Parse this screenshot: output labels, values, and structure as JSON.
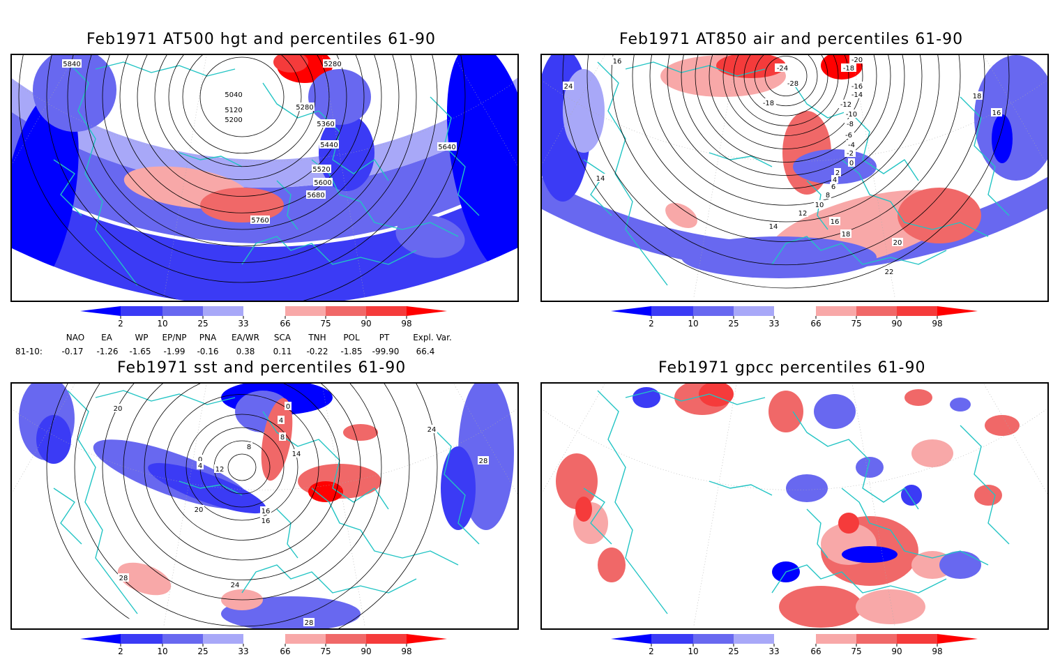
{
  "panels": [
    {
      "id": "tl",
      "title": "Feb1971 AT500 hgt and percentiles 61-90",
      "contour_labels": [
        "5840",
        "5280",
        "5040",
        "5120",
        "5200",
        "5280",
        "5360",
        "5440",
        "5520",
        "5600",
        "5680",
        "5760",
        "5640"
      ]
    },
    {
      "id": "tr",
      "title": "Feb1971 AT850 air and percentiles 61-90",
      "contour_labels": [
        "16",
        "-24",
        "-20",
        "-18",
        "-16",
        "-14",
        "-12",
        "-10",
        "-8",
        "-6",
        "-4",
        "-2",
        "0",
        "2",
        "4",
        "6",
        "8",
        "10",
        "12",
        "14",
        "16",
        "18",
        "20",
        "22",
        "24",
        "14",
        "16",
        "18",
        "-28",
        "-18"
      ]
    },
    {
      "id": "bl",
      "title": "Feb1971 sst and percentiles 61-90",
      "contour_labels": [
        "20",
        "0",
        "4",
        "8",
        "12",
        "16",
        "20",
        "24",
        "28",
        "16",
        "28",
        "24",
        "28",
        "0",
        "4",
        "8",
        "14"
      ]
    },
    {
      "id": "br",
      "title": "Feb1971 gpcc percentiles 61-90",
      "contour_labels": []
    }
  ],
  "colorbar": {
    "labels": [
      "2",
      "10",
      "25",
      "33",
      "66",
      "75",
      "90",
      "98"
    ],
    "colors": {
      "below_2": "#0000ff",
      "c2_10": "#3b3bf5",
      "c10_25": "#6868f0",
      "c25_33": "#a8a8f8",
      "c33_66": "#ffffff",
      "c66_75": "#f8a8a8",
      "c75_90": "#f06868",
      "c90_98": "#f53b3b",
      "above_98": "#ff0000"
    }
  },
  "indices": {
    "headers": [
      "NAO",
      "EA",
      "WP",
      "EP/NP",
      "PNA",
      "EA/WR",
      "SCA",
      "TNH",
      "POL",
      "PT",
      "Expl. Var."
    ],
    "row_label": "81-10:",
    "values": [
      "-0.17",
      "-1.26",
      "-1.65",
      "-1.99",
      "-0.16",
      "0.38",
      "0.11",
      "-0.22",
      "-1.85",
      "-99.90",
      "66.4"
    ]
  },
  "colors": {
    "coast": "#22c4c4",
    "contour": "#000000"
  }
}
